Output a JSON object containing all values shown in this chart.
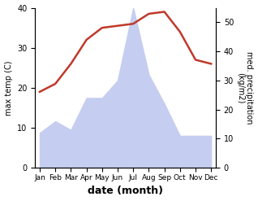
{
  "months": [
    "Jan",
    "Feb",
    "Mar",
    "Apr",
    "May",
    "Jun",
    "Jul",
    "Aug",
    "Sep",
    "Oct",
    "Nov",
    "Dec"
  ],
  "max_temp": [
    19,
    21,
    26,
    32,
    35,
    35.5,
    36,
    38.5,
    39,
    34,
    27,
    26
  ],
  "precipitation": [
    12,
    16,
    13,
    24,
    24,
    30,
    55,
    32,
    22,
    11,
    11,
    11
  ],
  "temp_color": "#c0392b",
  "precip_fill_color": "#c5cef0",
  "temp_ylim": [
    0,
    40
  ],
  "precip_ylim": [
    0,
    55
  ],
  "xlabel": "date (month)",
  "ylabel_left": "max temp (C)",
  "ylabel_right": "med. precipitation\n(kg/m2)",
  "background_color": "#ffffff",
  "label_fontsize": 9
}
